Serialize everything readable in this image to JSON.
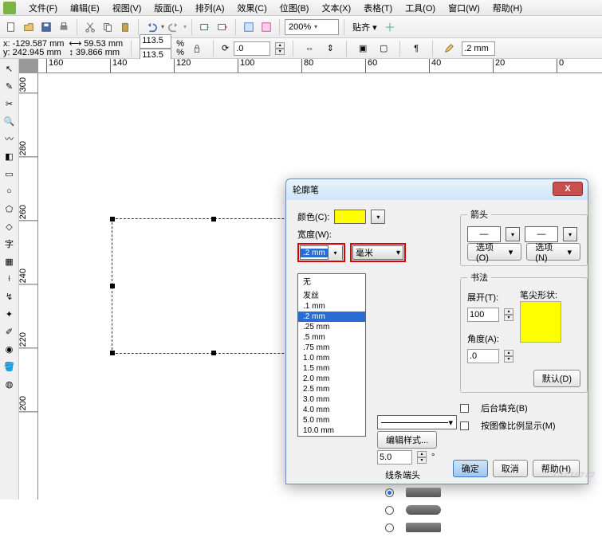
{
  "menu": [
    "文件(F)",
    "编辑(E)",
    "视图(V)",
    "版面(L)",
    "排列(A)",
    "效果(C)",
    "位图(B)",
    "文本(X)",
    "表格(T)",
    "工具(O)",
    "窗口(W)",
    "帮助(H)"
  ],
  "toolbar": {
    "zoom": "200%",
    "snap_label": "贴齐 ▾"
  },
  "coords": {
    "x": "-129.587 mm",
    "y": "242.945 mm",
    "w_lock": "59.53 mm",
    "h_lock": "39.866 mm",
    "w": "113.5",
    "h": "113.5",
    "pct": "%",
    "rot": ".0",
    "outline_w": ".2 mm"
  },
  "ruler_h": [
    "160",
    "140",
    "120",
    "100",
    "80",
    "60",
    "40",
    "20",
    "0"
  ],
  "ruler_v": [
    "300",
    "280",
    "260",
    "240",
    "220",
    "200"
  ],
  "dialog": {
    "title": "轮廓笔",
    "color_label": "颜色(C):",
    "width_label": "宽度(W):",
    "width_value": ".2 mm",
    "unit_value": "毫米",
    "list": [
      "无",
      "发丝",
      ".1 mm",
      ".2 mm",
      ".25 mm",
      ".5 mm",
      ".75 mm",
      "1.0 mm",
      "1.5 mm",
      "2.0 mm",
      "2.5 mm",
      "3.0 mm",
      "4.0 mm",
      "5.0 mm",
      "10.0 mm"
    ],
    "list_selected": ".2 mm",
    "edit_style": "编辑样式...",
    "spin1": "5.0",
    "line_end": "线条端头",
    "arrows": "箭头",
    "options1": "选项(O)",
    "options2": "选项(N)",
    "calli": "书法",
    "spread": "展开(T):",
    "spread_val": "100",
    "nib": "笔尖形状:",
    "angle": "角度(A):",
    "angle_val": ".0",
    "default_btn": "默认(D)",
    "bgfill": "后台填充(B)",
    "scale": "按图像比例显示(M)",
    "ok": "确定",
    "cancel": "取消",
    "help": "帮助(H)"
  },
  "colors": {
    "accent": "#ffff00",
    "highlight_red": "#d00000"
  }
}
